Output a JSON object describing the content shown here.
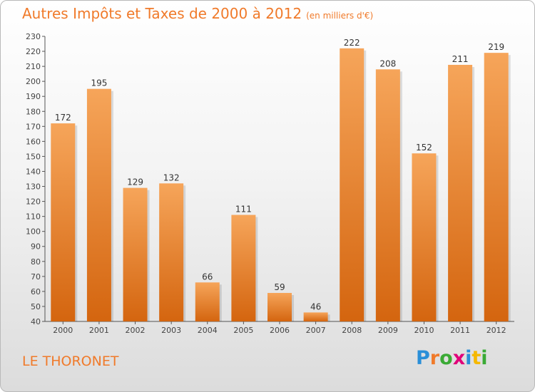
{
  "chart_data": {
    "type": "bar",
    "title": "Autres Impôts et Taxes de 2000 à 2012",
    "subtitle": "(en milliers d'€)",
    "categories": [
      "2000",
      "2001",
      "2002",
      "2003",
      "2004",
      "2005",
      "2006",
      "2007",
      "2008",
      "2009",
      "2010",
      "2011",
      "2012"
    ],
    "values": [
      172,
      195,
      129,
      132,
      66,
      111,
      59,
      46,
      222,
      208,
      152,
      211,
      219
    ],
    "ylim": [
      40,
      230
    ],
    "yticks": [
      40,
      50,
      60,
      70,
      80,
      90,
      100,
      110,
      120,
      130,
      140,
      150,
      160,
      170,
      180,
      190,
      200,
      210,
      220,
      230
    ],
    "grid": false,
    "xlabel": "",
    "ylabel": "",
    "colors": {
      "bar_top": "#f6a55a",
      "bar_bottom": "#d4650f",
      "text": "#f07a2a",
      "axis": "#555555"
    }
  },
  "footer": {
    "town": "LE THORONET"
  },
  "logo": {
    "letters": [
      {
        "ch": "P",
        "color": "#2a8fd8"
      },
      {
        "ch": "r",
        "color": "#f07a2a"
      },
      {
        "ch": "o",
        "color": "#3aaa35"
      },
      {
        "ch": "x",
        "color": "#e0007a"
      },
      {
        "ch": "i",
        "color": "#2a8fd8"
      },
      {
        "ch": "t",
        "color": "#f5b800"
      },
      {
        "ch": "i",
        "color": "#3aaa35"
      }
    ]
  }
}
